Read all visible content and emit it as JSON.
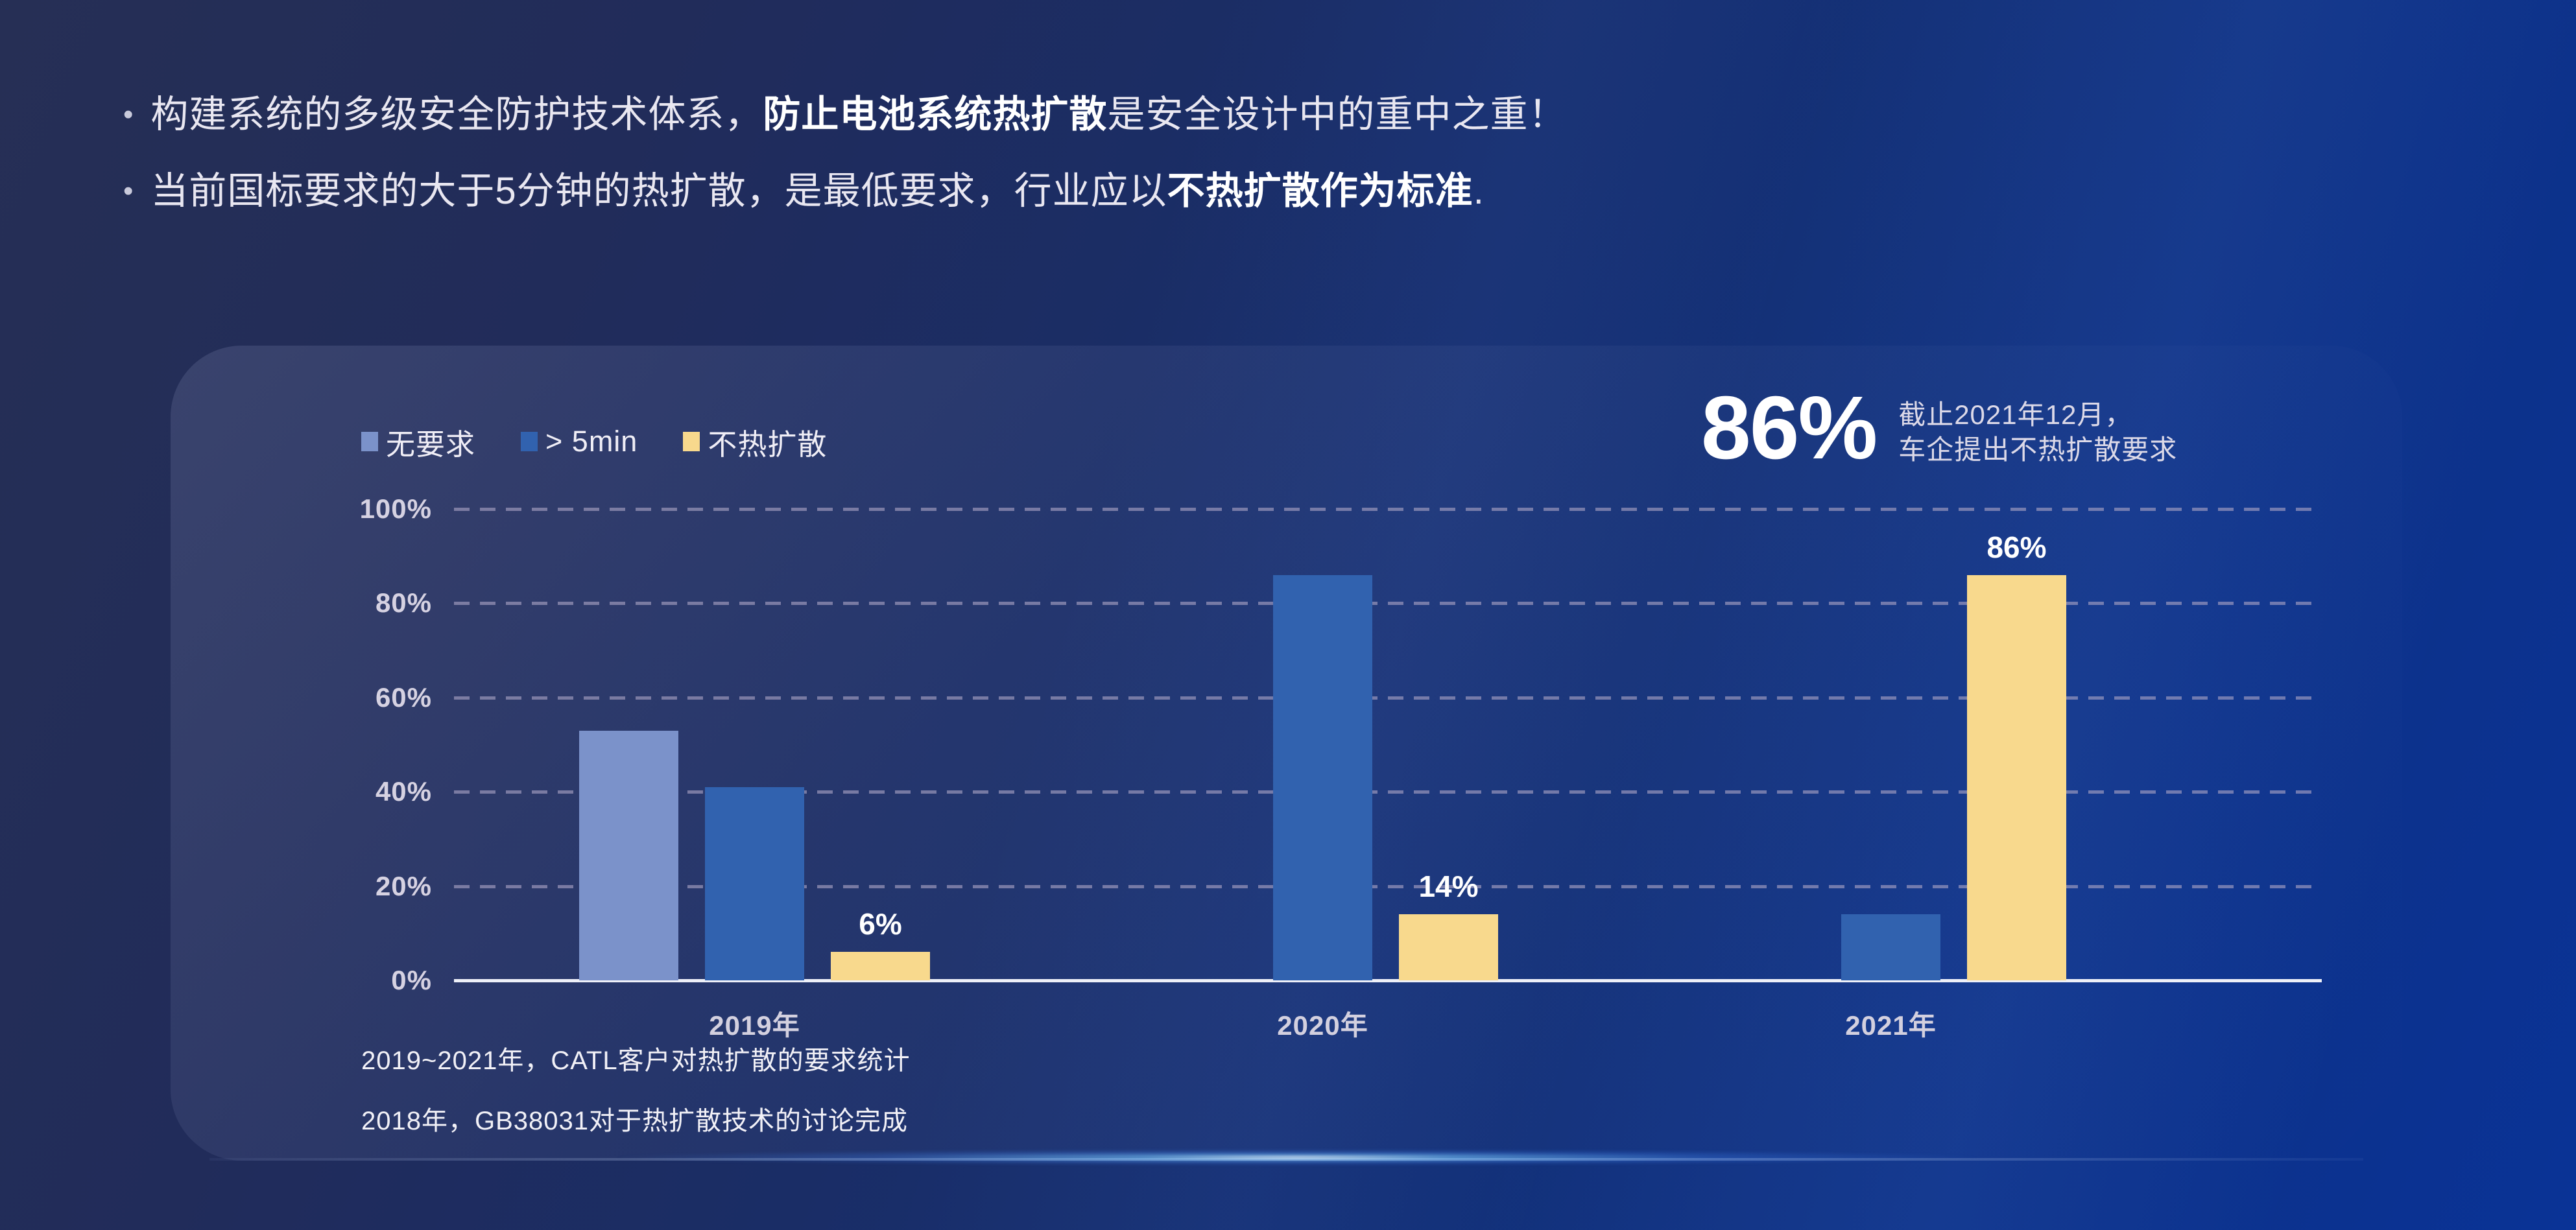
{
  "bullets": [
    {
      "segments": [
        {
          "text": "构建系统的多级安全防护技术体系，",
          "bold": false
        },
        {
          "text": "防止电池系统热扩散",
          "bold": true
        },
        {
          "text": "是安全设计中的重中之重！",
          "bold": false
        }
      ]
    },
    {
      "segments": [
        {
          "text": "当前国标要求的大于5分钟的热扩散，是最低要求，行业应以",
          "bold": false
        },
        {
          "text": "不热扩散作为标准",
          "bold": true
        },
        {
          "text": ".",
          "bold": false
        }
      ]
    }
  ],
  "panel": {
    "highlight": {
      "value": "86%",
      "note_lines": [
        "截止2021年12月，",
        "车企提出不热扩散要求"
      ]
    },
    "footnotes": [
      "2019~2021年，CATL客户对热扩散的要求统计",
      "2018年，GB38031对于热扩散技术的讨论完成"
    ]
  },
  "chart_data": {
    "type": "bar",
    "title": "",
    "categories": [
      "2019年",
      "2020年",
      "2021年"
    ],
    "series": [
      {
        "name": "无要求",
        "color": "#7b92ca",
        "values": [
          53,
          null,
          null
        ],
        "labels": [
          null,
          null,
          null
        ]
      },
      {
        "name": "> 5min",
        "color": "#3162af",
        "values": [
          41,
          86,
          14
        ],
        "labels": [
          null,
          null,
          null
        ]
      },
      {
        "name": "不热扩散",
        "color": "#f8d98d",
        "values": [
          6,
          14,
          86
        ],
        "labels": [
          "6%",
          "14%",
          "86%"
        ]
      }
    ],
    "yticks": [
      "100%",
      "80%",
      "60%",
      "40%",
      "20%",
      "0%"
    ],
    "ylim": [
      0,
      100
    ],
    "grid": "horizontal-dashed",
    "legend_position": "top-left",
    "gridline_color": "#aaa3c4",
    "axis_color": "#eef0f8",
    "bar_label_color": "#ffffff"
  }
}
